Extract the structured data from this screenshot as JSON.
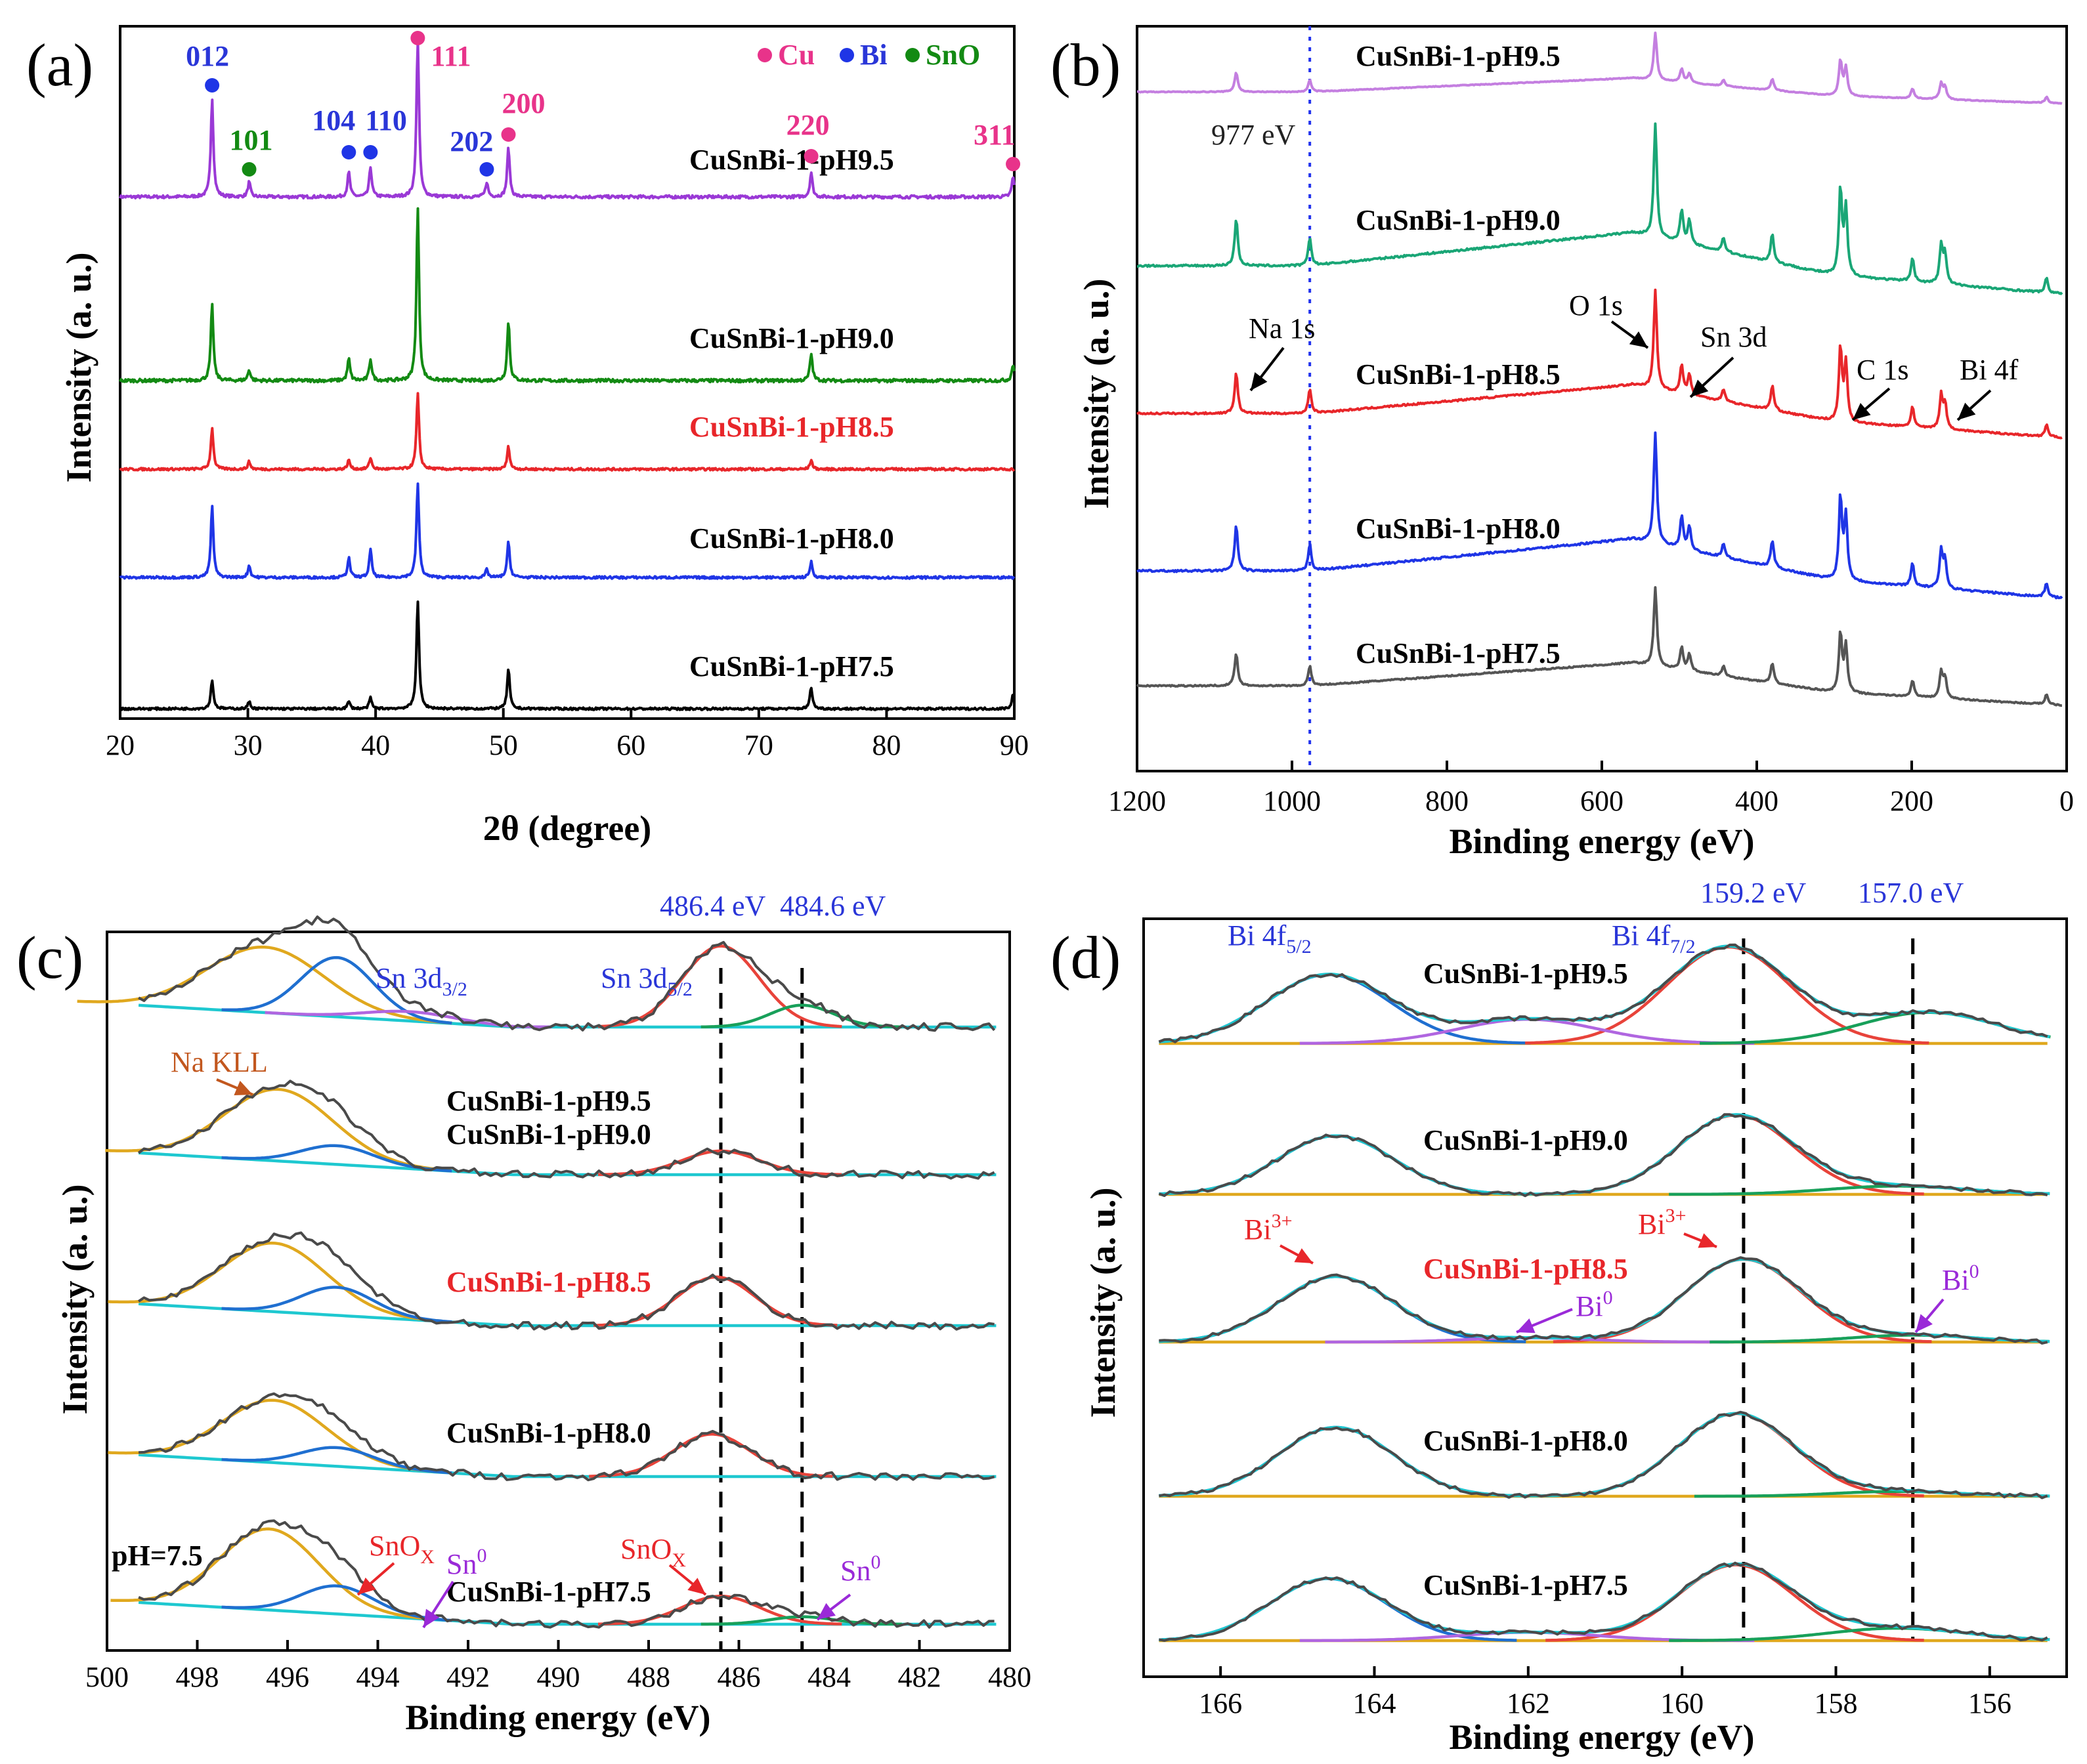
{
  "chart_data": [
    {
      "panel": "(a)",
      "type": "line",
      "title": "",
      "xlabel": "2θ (degree)",
      "ylabel": "Intensity (a. u.)",
      "xlim": [
        20,
        90
      ],
      "xticks": [
        20,
        30,
        40,
        50,
        60,
        70,
        80,
        90
      ],
      "series": [
        {
          "name": "CuSnBi-1-pH9.5",
          "color": "#9a39d6",
          "peaks": [
            [
              27.2,
              1.0
            ],
            [
              30.1,
              0.15
            ],
            [
              37.9,
              0.25
            ],
            [
              39.6,
              0.3
            ],
            [
              43.3,
              1.6
            ],
            [
              48.7,
              0.15
            ],
            [
              50.4,
              0.5
            ],
            [
              74.1,
              0.25
            ],
            [
              89.9,
              0.2
            ]
          ]
        },
        {
          "name": "CuSnBi-1-pH9.0",
          "color": "#138a13",
          "peaks": [
            [
              27.2,
              0.7
            ],
            [
              30.1,
              0.1
            ],
            [
              37.9,
              0.2
            ],
            [
              39.6,
              0.2
            ],
            [
              43.3,
              1.6
            ],
            [
              50.4,
              0.55
            ],
            [
              74.1,
              0.25
            ],
            [
              89.9,
              0.15
            ]
          ]
        },
        {
          "name": "CuSnBi-1-pH8.5",
          "color": "#e8262a",
          "peaks": [
            [
              27.2,
              0.55
            ],
            [
              30.1,
              0.1
            ],
            [
              37.9,
              0.12
            ],
            [
              39.6,
              0.15
            ],
            [
              43.3,
              1.0
            ],
            [
              50.4,
              0.3
            ],
            [
              74.1,
              0.12
            ]
          ]
        },
        {
          "name": "CuSnBi-1-pH8.0",
          "color": "#1f35e6",
          "peaks": [
            [
              27.2,
              0.9
            ],
            [
              30.1,
              0.15
            ],
            [
              37.9,
              0.25
            ],
            [
              39.6,
              0.35
            ],
            [
              43.3,
              1.2
            ],
            [
              48.7,
              0.1
            ],
            [
              50.4,
              0.45
            ],
            [
              74.1,
              0.2
            ]
          ]
        },
        {
          "name": "CuSnBi-1-pH7.5",
          "color": "#000000",
          "peaks": [
            [
              27.2,
              0.4
            ],
            [
              30.1,
              0.1
            ],
            [
              37.9,
              0.1
            ],
            [
              39.6,
              0.15
            ],
            [
              43.3,
              1.5
            ],
            [
              50.4,
              0.55
            ],
            [
              74.1,
              0.3
            ],
            [
              89.9,
              0.2
            ]
          ]
        }
      ],
      "peak_labels": [
        {
          "text": "012",
          "x": 27.2,
          "phase": "Bi"
        },
        {
          "text": "101",
          "x": 30.1,
          "phase": "SnO"
        },
        {
          "text": "104",
          "x": 37.9,
          "phase": "Bi"
        },
        {
          "text": "110",
          "x": 39.6,
          "phase": "Bi"
        },
        {
          "text": "111",
          "x": 43.3,
          "phase": "Cu"
        },
        {
          "text": "202",
          "x": 48.7,
          "phase": "Bi"
        },
        {
          "text": "200",
          "x": 50.4,
          "phase": "Cu"
        },
        {
          "text": "220",
          "x": 74.1,
          "phase": "Cu"
        },
        {
          "text": "311",
          "x": 89.9,
          "phase": "Cu"
        }
      ],
      "legend": [
        {
          "label": "Cu",
          "color": "#e8338a"
        },
        {
          "label": "Bi",
          "color": "#1f35e6"
        },
        {
          "label": "SnO",
          "color": "#138a13"
        }
      ]
    },
    {
      "panel": "(b)",
      "type": "line",
      "xlabel": "Binding energy (eV)",
      "ylabel": "Intensity (a. u.)",
      "xlim": [
        1200,
        0
      ],
      "xticks": [
        1200,
        1000,
        800,
        600,
        400,
        200,
        0
      ],
      "reference_line": {
        "x": 977,
        "label": "977 eV"
      },
      "series": [
        {
          "name": "CuSnBi-1-pH9.5",
          "color": "#c47fe0"
        },
        {
          "name": "CuSnBi-1-pH9.0",
          "color": "#1aa676"
        },
        {
          "name": "CuSnBi-1-pH8.5",
          "color": "#e8262a"
        },
        {
          "name": "CuSnBi-1-pH8.0",
          "color": "#1f35e6"
        },
        {
          "name": "CuSnBi-1-pH7.5",
          "color": "#555555"
        }
      ],
      "peaks_eV": [
        [
          1072,
          0.5
        ],
        [
          977,
          0.3
        ],
        [
          531,
          1.2
        ],
        [
          497,
          0.35
        ],
        [
          487,
          0.25
        ],
        [
          443,
          0.15
        ],
        [
          380,
          0.3
        ],
        [
          292,
          0.9
        ],
        [
          285,
          0.7
        ],
        [
          199,
          0.25
        ],
        [
          162,
          0.4
        ],
        [
          157,
          0.3
        ],
        [
          26,
          0.15
        ]
      ],
      "annotations": [
        "Na 1s",
        "O 1s",
        "Sn 3d",
        "C 1s",
        "Bi 4f"
      ]
    },
    {
      "panel": "(c)",
      "type": "line",
      "xlabel": "Binding energy (eV)",
      "ylabel": "Intensity (a. u.)",
      "xlim": [
        500,
        480
      ],
      "xticks": [
        500,
        498,
        496,
        494,
        492,
        490,
        488,
        486,
        484,
        482,
        480
      ],
      "reference_lines": [
        {
          "x": 486.4,
          "label": "486.4 eV"
        },
        {
          "x": 484.6,
          "label": "484.6 eV"
        }
      ],
      "series": [
        {
          "name": "CuSnBi-1-pH9.5",
          "components": {
            "NaKLL": [
              496.5,
              1.3,
              1.05
            ],
            "Sn3d32": [
              494.9,
              0.8,
              0.95
            ],
            "Sn3d52_SnOx": [
              486.4,
              0.85,
              1.3
            ],
            "Sn3d52_Sn0": [
              484.6,
              0.7,
              0.35
            ],
            "extra": [
              493.3,
              1.0,
              0.15
            ]
          }
        },
        {
          "name": "CuSnBi-1-pH9.0",
          "components": {
            "NaKLL": [
              496.2,
              1.2,
              1.15
            ],
            "Sn3d32": [
              494.9,
              0.8,
              0.3
            ],
            "Sn3d52_SnOx": [
              486.4,
              0.85,
              0.38
            ]
          }
        },
        {
          "name": "CuSnBi-1-pH8.5",
          "components": {
            "NaKLL": [
              496.3,
              1.15,
              1.1
            ],
            "Sn3d32": [
              494.9,
              0.8,
              0.45
            ],
            "Sn3d52_SnOx": [
              486.5,
              0.85,
              0.78
            ]
          }
        },
        {
          "name": "CuSnBi-1-pH8.0",
          "components": {
            "NaKLL": [
              496.3,
              1.15,
              1.0
            ],
            "Sn3d32": [
              494.9,
              0.8,
              0.3
            ],
            "Sn3d52_SnOx": [
              486.6,
              0.85,
              0.68
            ]
          }
        },
        {
          "name": "CuSnBi-1-pH7.5",
          "components": {
            "NaKLL": [
              496.4,
              1.1,
              1.3
            ],
            "Sn3d32": [
              494.9,
              0.8,
              0.45
            ],
            "Sn3d52_SnOx": [
              486.4,
              0.85,
              0.45
            ],
            "Sn3d52_Sn0": [
              484.6,
              0.7,
              0.12
            ]
          }
        }
      ],
      "annotations": {
        "na_kll": "Na KLL",
        "ph_note": "pH=7.5",
        "sn3d32": "Sn 3d",
        "sn3d32_sub": "3/2",
        "sn3d52": "Sn 3d",
        "sn3d52_sub": "5/2",
        "snox": "SnO",
        "snox_sub": "X",
        "sn0": "Sn",
        "sn0_sup": "0"
      }
    },
    {
      "panel": "(d)",
      "type": "line",
      "xlabel": "Binding energy (eV)",
      "ylabel": "Intensity (a. u.)",
      "xlim": [
        167,
        155
      ],
      "xticks": [
        166,
        164,
        162,
        160,
        158,
        156
      ],
      "reference_lines": [
        {
          "x": 159.2,
          "label": "159.2 eV"
        },
        {
          "x": 157.0,
          "label": "157.0 eV"
        }
      ],
      "series": [
        {
          "name": "CuSnBi-1-pH9.5",
          "components": {
            "Bi4f52_Bi3": [
              164.6,
              0.8,
              1.0
            ],
            "Bi4f72_Bi3": [
              159.4,
              0.8,
              1.4
            ],
            "Bi4f52_Bi0": [
              162.0,
              0.9,
              0.35
            ],
            "Bi4f72_Bi0": [
              156.8,
              0.9,
              0.45
            ]
          }
        },
        {
          "name": "CuSnBi-1-pH9.0",
          "components": {
            "Bi4f52_Bi3": [
              164.5,
              0.75,
              0.85
            ],
            "Bi4f72_Bi3": [
              159.3,
              0.75,
              1.15
            ],
            "Bi4f72_Bi0": [
              157.2,
              0.9,
              0.12
            ]
          }
        },
        {
          "name": "CuSnBi-1-pH8.5",
          "components": {
            "Bi4f52_Bi3": [
              164.5,
              0.75,
              0.95
            ],
            "Bi4f72_Bi3": [
              159.2,
              0.75,
              1.2
            ],
            "Bi4f52_Bi0": [
              162.0,
              0.8,
              0.06
            ],
            "Bi4f72_Bi0": [
              157.0,
              0.8,
              0.1
            ]
          }
        },
        {
          "name": "CuSnBi-1-pH8.0",
          "components": {
            "Bi4f52_Bi3": [
              164.5,
              0.75,
              1.0
            ],
            "Bi4f72_Bi3": [
              159.3,
              0.75,
              1.2
            ],
            "Bi4f72_Bi0": [
              157.2,
              0.8,
              0.07
            ]
          }
        },
        {
          "name": "CuSnBi-1-pH7.5",
          "components": {
            "Bi4f52_Bi3": [
              164.6,
              0.75,
              0.9
            ],
            "Bi4f72_Bi3": [
              159.3,
              0.75,
              1.1
            ],
            "Bi4f52_Bi0": [
              162.0,
              0.9,
              0.12
            ],
            "Bi4f72_Bi0": [
              157.2,
              0.9,
              0.18
            ]
          }
        }
      ],
      "annotations": {
        "bi4f52": "Bi 4f",
        "bi4f52_sub": "5/2",
        "bi4f72": "Bi 4f",
        "bi4f72_sub": "7/2",
        "bi3": "Bi",
        "bi3_sup": "3+",
        "bi0": "Bi",
        "bi0_sup": "0"
      }
    }
  ],
  "colors": {
    "ref_line_b": "#2233ee",
    "label_blue": "#2a36d8",
    "label_red": "#e8262a",
    "label_purple": "#9a2ad8",
    "label_orange": "#c2571e",
    "fit_yellow": "#e0a81e",
    "fit_blue": "#1f6fd0",
    "fit_red": "#e8433a",
    "fit_green": "#18a05a",
    "fit_cyan": "#1ec8d0",
    "fit_purple": "#b066e0",
    "raw_gray": "#4a4a4a"
  }
}
